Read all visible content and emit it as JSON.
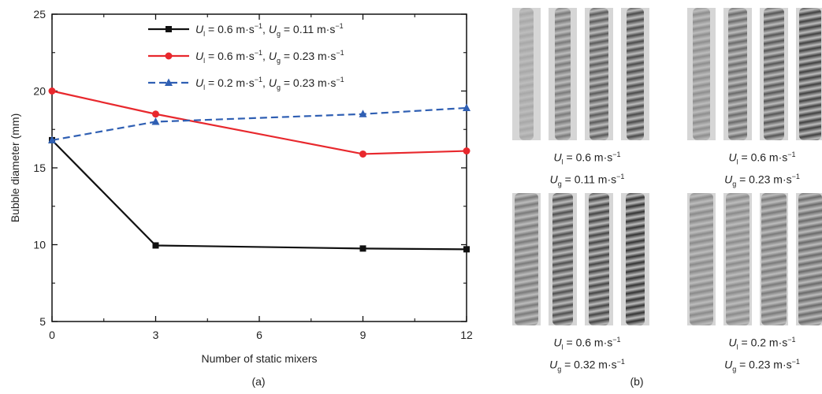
{
  "chart_data": {
    "type": "line",
    "x": [
      0,
      3,
      9,
      12
    ],
    "xlabel": "Number of static mixers",
    "ylabel": "Bubble diameter (mm)",
    "xlim": [
      0,
      12
    ],
    "ylim": [
      5,
      25
    ],
    "xticks": [
      "0",
      "3",
      "6",
      "9",
      "12"
    ],
    "yticks": [
      "5",
      "10",
      "15",
      "20",
      "25"
    ],
    "legend_position": "top-right",
    "series": [
      {
        "name": "Ul = 0.6 m·s−1, Ug = 0.11 m·s−1",
        "values": [
          16.8,
          9.95,
          9.75,
          9.7
        ],
        "color": "#111111",
        "marker": "square",
        "dash": false
      },
      {
        "name": "Ul = 0.6 m·s−1, Ug = 0.23 m·s−1",
        "values": [
          20.0,
          18.5,
          15.9,
          16.1
        ],
        "color": "#e8282d",
        "marker": "circle",
        "dash": false
      },
      {
        "name": "Ul = 0.2 m·s−1, Ug = 0.23 m·s−1",
        "values": [
          16.8,
          18.0,
          18.5,
          18.9
        ],
        "color": "#2f5fb3",
        "marker": "triangle",
        "dash": true
      }
    ],
    "legend": [
      {
        "u1": "U",
        "s1": "l",
        "v1": " = 0.6 m·s",
        "e1": "−1",
        "sep": ", ",
        "u2": "U",
        "s2": "g",
        "v2": " = 0.11 m·s",
        "e2": "−1"
      },
      {
        "u1": "U",
        "s1": "l",
        "v1": " = 0.6 m·s",
        "e1": "−1",
        "sep": ", ",
        "u2": "U",
        "s2": "g",
        "v2": " = 0.23 m·s",
        "e2": "−1"
      },
      {
        "u1": "U",
        "s1": "l",
        "v1": " = 0.2 m·s",
        "e1": "−1",
        "sep": ", ",
        "u2": "U",
        "s2": "g",
        "v2": " = 0.23 m·s",
        "e2": "−1"
      }
    ]
  },
  "panel_b": {
    "groups": [
      {
        "ul": "0.6",
        "ug": "0.11"
      },
      {
        "ul": "0.6",
        "ug": "0.23"
      },
      {
        "ul": "0.6",
        "ug": "0.32"
      },
      {
        "ul": "0.2",
        "ug": "0.23"
      }
    ],
    "unit": "m·s",
    "exp": "−1"
  },
  "labels": {
    "a": "(a)",
    "b": "(b)"
  }
}
